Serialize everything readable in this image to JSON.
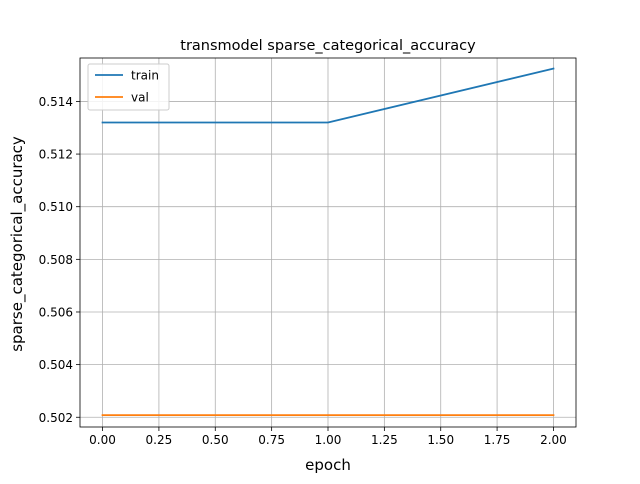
{
  "chart_data": {
    "type": "line",
    "title": "transmodel sparse_categorical_accuracy",
    "xlabel": "epoch",
    "ylabel": "sparse_categorical_accuracy",
    "xlim": [
      -0.1,
      2.1
    ],
    "ylim": [
      0.50163,
      0.51565
    ],
    "xticks": [
      0.0,
      0.25,
      0.5,
      0.75,
      1.0,
      1.25,
      1.5,
      1.75,
      2.0
    ],
    "xtick_labels": [
      "0.00",
      "0.25",
      "0.50",
      "0.75",
      "1.00",
      "1.25",
      "1.50",
      "1.75",
      "2.00"
    ],
    "yticks": [
      0.502,
      0.504,
      0.506,
      0.508,
      0.51,
      0.512,
      0.514
    ],
    "ytick_labels": [
      "0.502",
      "0.504",
      "0.506",
      "0.508",
      "0.510",
      "0.512",
      "0.514"
    ],
    "grid": true,
    "legend_position": "upper-left",
    "series": [
      {
        "name": "train",
        "color": "#1f77b4",
        "x": [
          0,
          1,
          2
        ],
        "y": [
          0.5132,
          0.5132,
          0.51525
        ]
      },
      {
        "name": "val",
        "color": "#ff7f0e",
        "x": [
          0,
          1,
          2
        ],
        "y": [
          0.50208,
          0.50208,
          0.50208
        ]
      }
    ]
  }
}
